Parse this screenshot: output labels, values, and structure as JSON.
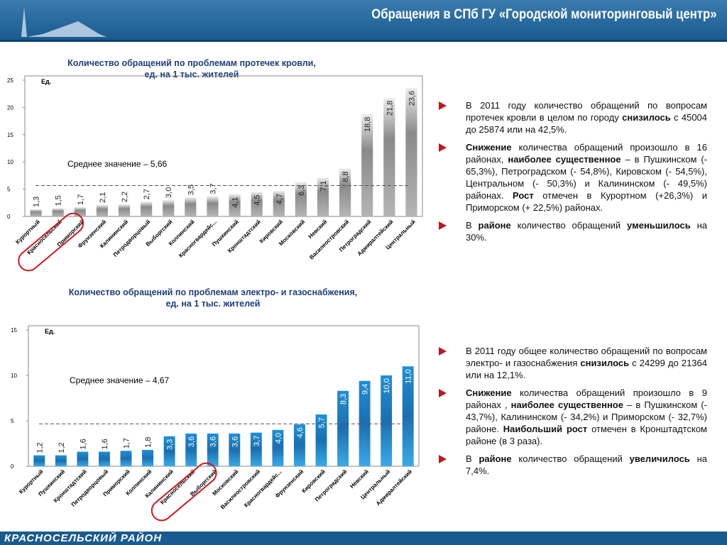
{
  "header": {
    "title": "Обращения в СПб ГУ «Городской мониторинговый центр»"
  },
  "footer": {
    "title": "КРАСНОСЕЛЬСКИЙ РАЙОН"
  },
  "chart_data": [
    {
      "type": "bar",
      "title": [
        "Количество обращений по проблемам протечек кровли,",
        "ед. на 1 тыс. жителей"
      ],
      "y_label": "Ед.",
      "categories": [
        "Курортный",
        "Красносельский",
        "Приморский",
        "Фрунзенский",
        "Калининский",
        "Петродворцовый",
        "Выборгский",
        "Колпинский",
        "Красногвардейс...",
        "Пушкинский",
        "Кронштадтский",
        "Кировский",
        "Московский",
        "Невский",
        "Василеостровский",
        "Петроградский",
        "Адмиралтейский",
        "Центральный"
      ],
      "values": [
        1.3,
        1.5,
        1.7,
        2.1,
        2.2,
        2.7,
        3.0,
        3.5,
        3.7,
        4.1,
        4.5,
        4.7,
        6.3,
        7.1,
        8.8,
        18.8,
        21.8,
        23.6
      ],
      "value_labels": [
        "1,3",
        "1,5",
        "1,7",
        "2,1",
        "2,2",
        "2,7",
        "3,0",
        "3,5",
        "3,7",
        "4,1",
        "4,5",
        "4,7",
        "6,3",
        "7,1",
        "8,8",
        "18,8",
        "21,8",
        "23,6"
      ],
      "color": "gray",
      "ylim": [
        0,
        25
      ],
      "yticks": [
        0,
        5,
        10,
        15,
        20,
        25
      ],
      "mean": 5.66,
      "mean_label": "Среднее значение – 5,66",
      "highlight": "Красносельский"
    },
    {
      "type": "bar",
      "title": [
        "Количество обращений по проблемам электро- и газоснабжения,",
        "ед. на 1 тыс. жителей"
      ],
      "y_label": "Ед.",
      "categories": [
        "Курортный",
        "Пушкинский",
        "Кронштадтский",
        "Петродворцовый",
        "Приморский",
        "Колпинский",
        "Калининский",
        "Красносельский",
        "Выборгский",
        "Московский",
        "Василеостровский",
        "Красногвардейс...",
        "Фрунзенский",
        "Кировский",
        "Петроградский",
        "Невский",
        "Центральный",
        "Адмиралтейский"
      ],
      "values": [
        1.2,
        1.2,
        1.6,
        1.6,
        1.7,
        1.8,
        3.3,
        3.6,
        3.6,
        3.6,
        3.7,
        4.0,
        4.6,
        5.7,
        8.3,
        9.4,
        10.0,
        11.0
      ],
      "value_labels": [
        "1,2",
        "1,2",
        "1,6",
        "1,6",
        "1,7",
        "1,8",
        "3,3",
        "3,6",
        "3,6",
        "3,6",
        "3,7",
        "4,0",
        "4,6",
        "5,7",
        "8,3",
        "9,4",
        "10,0",
        "11,0"
      ],
      "color": "blue",
      "ylim": [
        0,
        15
      ],
      "yticks": [
        0,
        5,
        10,
        15
      ],
      "mean": 4.67,
      "mean_label": "Среднее значение – 4,67",
      "highlight": "Красносельский"
    }
  ],
  "notes": [
    [
      [
        {
          "text": "В 2011 году количество обращений по вопросам протечек кровли в целом по городу "
        },
        {
          "text": "снизилось",
          "bold": true
        },
        {
          "text": " с 45004 до 25874 или на 42,5%."
        }
      ],
      [
        {
          "text": "Снижение",
          "bold": true
        },
        {
          "text": " количества обращений произошло в 16 районах, "
        },
        {
          "text": "наиболее существенное",
          "bold": true
        },
        {
          "text": " – в Пушкинском (- 65,3%), Петроградском (- 54,8%), Кировском (- 54,5%), Центральном (- 50,3%) и Калининском (- 49,5%) районах. "
        },
        {
          "text": "Рост",
          "bold": true
        },
        {
          "text": " отмечен в Курортном (+26,3%) и Приморском (+ 22,5%) районах."
        }
      ],
      [
        {
          "text": "В "
        },
        {
          "text": "районе",
          "bold": true
        },
        {
          "text": " количество обращений "
        },
        {
          "text": "уменьшилось",
          "bold": true
        },
        {
          "text": " на 30%."
        }
      ]
    ],
    [
      [
        {
          "text": "В 2011 году общее количество обращений по вопросам электро- и газоснабжения "
        },
        {
          "text": "снизилось",
          "bold": true
        },
        {
          "text": " с 24299 до 21364 или на 12,1%."
        }
      ],
      [
        {
          "text": "Снижение",
          "bold": true
        },
        {
          "text": " количества обращений произошло в 9 районах , "
        },
        {
          "text": "наиболее существенное",
          "bold": true
        },
        {
          "text": " – в Пушкинском (- 43,7%), Калининском (- 34,2%) и Приморском (- 32,7%) районе. "
        },
        {
          "text": "Наибольший рост",
          "bold": true
        },
        {
          "text": " отмечен в Кронштадтском районе (в 3 раза)."
        }
      ],
      [
        {
          "text": "В "
        },
        {
          "text": "районе",
          "bold": true
        },
        {
          "text": " количество обращений "
        },
        {
          "text": "увеличилось",
          "bold": true
        },
        {
          "text": " на 7,4%."
        }
      ]
    ]
  ]
}
